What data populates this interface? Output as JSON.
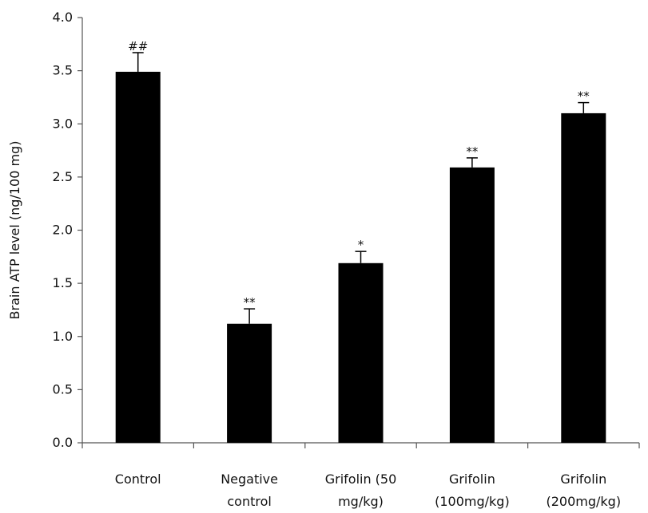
{
  "chart_data": {
    "type": "bar",
    "categories": [
      [
        "Control"
      ],
      [
        "Negative",
        "control"
      ],
      [
        "Grifolin (50",
        "mg/kg)"
      ],
      [
        "Grifolin",
        "(100mg/kg)"
      ],
      [
        "Grifolin",
        "(200mg/kg)"
      ]
    ],
    "values": [
      3.49,
      1.12,
      1.69,
      2.59,
      3.1
    ],
    "errors": [
      0.18,
      0.14,
      0.11,
      0.09,
      0.1
    ],
    "annotations": [
      "##",
      "**",
      "*",
      "**",
      "**"
    ],
    "title": "",
    "xlabel": "",
    "ylabel": "Brain ATP level (ng/100 mg)",
    "ylim": [
      0,
      4.0
    ],
    "yticks": [
      "0.0",
      "0.5",
      "1.0",
      "1.5",
      "2.0",
      "2.5",
      "3.0",
      "3.5",
      "4.0"
    ],
    "grid": false,
    "legend": "none",
    "bar_color": "#000000"
  }
}
